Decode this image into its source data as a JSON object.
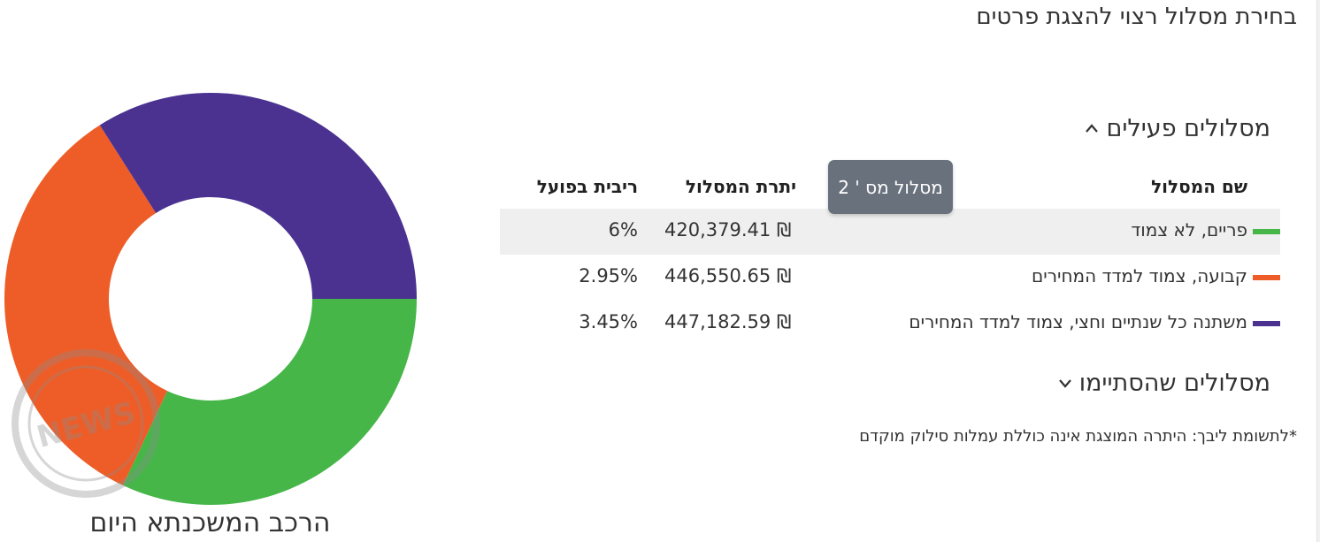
{
  "page_title": "בחירת מסלול רצוי להצגת פרטים",
  "active_section": {
    "label": "מסלולים פעילים",
    "expanded": true
  },
  "ended_section": {
    "label": "מסלולים שהסתיימו",
    "expanded": false
  },
  "table": {
    "headers": {
      "name": "שם המסלול",
      "balance": "יתרת המסלול",
      "rate": "ריבית בפועל"
    },
    "rows": [
      {
        "name": "פריים, לא צמוד",
        "balance": "420,379.41 ₪",
        "rate": "6%",
        "color": "#46b649"
      },
      {
        "name": "קבועה, צמוד למדד המחירים",
        "balance": "446,550.65 ₪",
        "rate": "2.95%",
        "color": "#ee5d27"
      },
      {
        "name": "משתנה כל שנתיים וחצי, צמוד למדד המחירים",
        "balance": "447,182.59 ₪",
        "rate": "3.45%",
        "color": "#4b3291"
      }
    ]
  },
  "tooltip": {
    "label": "מסלול מס ' 2"
  },
  "footnote": "*לתשומת ליבך: היתרה המוצגת אינה כוללת עמלות סילוק מוקדם",
  "chart": {
    "caption": "הרכב המשכנתא היום"
  },
  "chart_data": {
    "type": "pie",
    "title": "הרכב המשכנתא היום",
    "donut": true,
    "slices": [
      {
        "label": "פריים, לא צמוד",
        "value": 420379.41,
        "color": "#46b649"
      },
      {
        "label": "קבועה, צמוד למדד המחירים",
        "value": 446550.65,
        "color": "#ee5d27"
      },
      {
        "label": "משתנה כל שנתיים וחצי, צמוד למדד המחירים",
        "value": 447182.59,
        "color": "#4b3291"
      }
    ],
    "start_angle_deg": 0,
    "direction": "clockwise",
    "legend": "none"
  },
  "watermark_text": "NEWS"
}
